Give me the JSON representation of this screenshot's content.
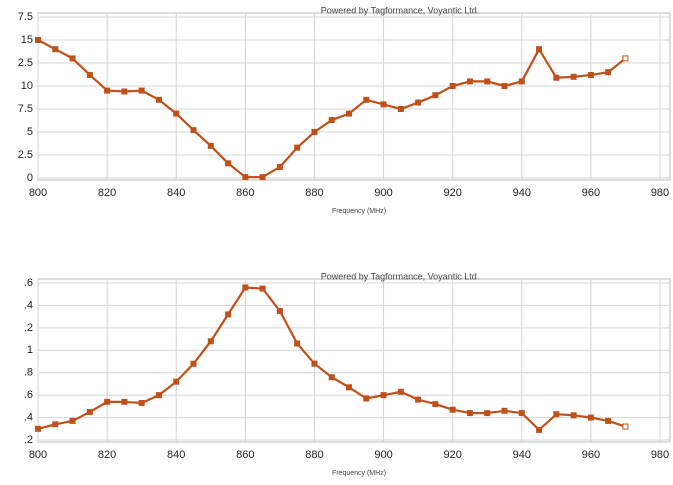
{
  "chart_data": [
    {
      "type": "line",
      "title": "Powered by Tagformance, Voyantic Ltd.",
      "x_label": "Frequency (MHz)",
      "x": [
        800,
        805,
        810,
        815,
        820,
        825,
        830,
        835,
        840,
        845,
        850,
        855,
        860,
        865,
        870,
        875,
        880,
        885,
        890,
        895,
        900,
        905,
        910,
        915,
        920,
        925,
        930,
        935,
        940,
        945,
        950,
        955,
        960,
        965,
        970
      ],
      "series": [
        {
          "color": "#c0501a",
          "values": [
            15,
            14,
            13,
            11.2,
            9.5,
            9.4,
            9.5,
            8.5,
            7,
            5.2,
            3.5,
            1.6,
            0.1,
            0.1,
            1.2,
            3.3,
            5,
            6.3,
            7,
            8.5,
            8,
            7.5,
            8.2,
            9,
            10,
            10.5,
            10.5,
            10,
            10.5,
            14,
            10.9,
            11,
            11.2,
            11.5,
            13
          ]
        }
      ],
      "xlim": [
        800,
        980
      ],
      "xticks": [
        800,
        820,
        840,
        860,
        880,
        900,
        920,
        940,
        960,
        980
      ],
      "ylim": [
        0,
        17.5
      ],
      "yticks": [
        {
          "value": 17.5,
          "label": "7.5"
        },
        15,
        {
          "value": 12.5,
          "label": "2.5"
        },
        10,
        7.5,
        5,
        2.5,
        0
      ],
      "grid": true
    },
    {
      "type": "line",
      "title": "Powered by Tagformance, Voyantic Ltd.",
      "x_label": "Frequency (MHz)",
      "x": [
        800,
        805,
        810,
        815,
        820,
        825,
        830,
        835,
        840,
        845,
        850,
        855,
        860,
        865,
        870,
        875,
        880,
        885,
        890,
        895,
        900,
        905,
        910,
        915,
        920,
        925,
        930,
        935,
        940,
        945,
        950,
        955,
        960,
        965,
        970
      ],
      "series": [
        {
          "color": "#c0501a",
          "values": [
            0.3,
            0.34,
            0.37,
            0.45,
            0.54,
            0.54,
            0.53,
            0.6,
            0.72,
            0.88,
            1.08,
            1.32,
            1.56,
            1.55,
            1.35,
            1.06,
            0.88,
            0.76,
            0.67,
            0.57,
            0.6,
            0.63,
            0.56,
            0.52,
            0.47,
            0.44,
            0.44,
            0.46,
            0.44,
            0.29,
            0.43,
            0.42,
            0.4,
            0.37,
            0.32
          ]
        }
      ],
      "xlim": [
        800,
        980
      ],
      "xticks": [
        800,
        820,
        840,
        860,
        880,
        900,
        920,
        940,
        960,
        980
      ],
      "ylim": [
        0.2,
        1.6
      ],
      "yticks": [
        {
          "value": 1.6,
          "label": ".6"
        },
        {
          "value": 1.4,
          "label": ".4"
        },
        {
          "value": 1.2,
          "label": ".2"
        },
        1,
        {
          "value": 0.8,
          "label": ".8"
        },
        {
          "value": 0.6,
          "label": ".6"
        },
        {
          "value": 0.4,
          "label": ".4"
        },
        {
          "value": 0.2,
          "label": ".2"
        }
      ],
      "grid": true
    }
  ]
}
